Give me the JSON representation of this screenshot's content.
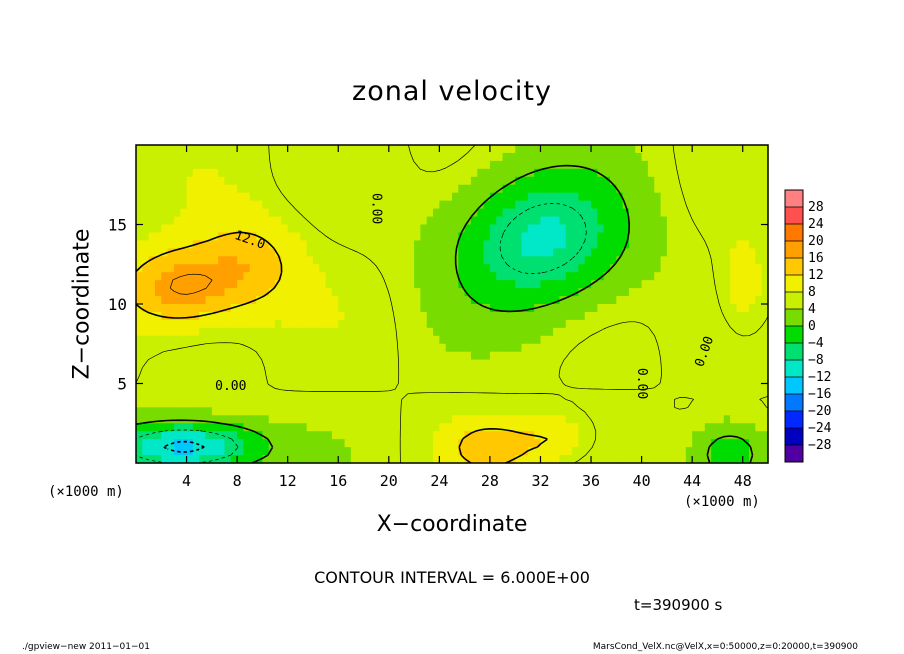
{
  "figure": {
    "title": "zonal velocity",
    "xlabel": "X−coordinate",
    "ylabel": "Z−coordinate",
    "x_unit_left": "(×1000 m)",
    "x_unit_right": "(×1000 m)",
    "contour_interval_text": "CONTOUR INTERVAL = 6.000E+00",
    "time_text": "t=390900 s",
    "footer_left": "./gpview−new   2011−01−01",
    "footer_right": "MarsCond_VelX.nc@VelX,x=0:50000,z=0:20000,t=390900"
  },
  "chart_data": {
    "type": "heatmap",
    "title": "zonal velocity",
    "xlabel": "X−coordinate",
    "ylabel": "Z−coordinate",
    "x_unit": "(×1000 m)",
    "xlim": [
      0,
      50
    ],
    "ylim": [
      0,
      20
    ],
    "x_ticks": [
      4,
      8,
      12,
      16,
      20,
      24,
      28,
      32,
      36,
      40,
      44,
      48
    ],
    "y_ticks": [
      5,
      10,
      15
    ],
    "contour_interval": 6,
    "contour_labels": [
      "12.0",
      "0.00",
      "0.00",
      "0.00",
      "0.00"
    ],
    "colorbar": {
      "ticks": [
        28,
        24,
        20,
        16,
        12,
        8,
        4,
        0,
        -4,
        -8,
        -12,
        -16,
        -20,
        -24,
        -28
      ],
      "colors": [
        "#ff8080",
        "#ff5050",
        "#ff7800",
        "#ffa000",
        "#ffc800",
        "#f0f000",
        "#c8f000",
        "#78dc00",
        "#00dc00",
        "#00e070",
        "#00e8c8",
        "#00c8ff",
        "#0078ff",
        "#0028ff",
        "#0000c0",
        "#5000a0"
      ]
    },
    "features": [
      {
        "kind": "max",
        "x": 3.5,
        "z": 11,
        "value": 19,
        "sx": 4.5,
        "sz": 2.5
      },
      {
        "kind": "max",
        "x": 9,
        "z": 12.5,
        "value": 14,
        "sx": 4,
        "sz": 3
      },
      {
        "kind": "max",
        "x": 28,
        "z": 1,
        "value": 14,
        "sx": 3,
        "sz": 1.5
      },
      {
        "kind": "max",
        "x": 33,
        "z": 1.5,
        "value": 12,
        "sx": 3,
        "sz": 1.5
      },
      {
        "kind": "max",
        "x": 48,
        "z": 11,
        "value": 11,
        "sx": 2,
        "sz": 3
      },
      {
        "kind": "min",
        "x": 32,
        "z": 14,
        "value": -9,
        "sx": 7,
        "sz": 4.5
      },
      {
        "kind": "min",
        "x": 4,
        "z": 1,
        "value": -15,
        "sx": 6,
        "sz": 1.6
      },
      {
        "kind": "min",
        "x": 47,
        "z": 0.5,
        "value": -5,
        "sx": 3,
        "sz": 2
      }
    ]
  }
}
